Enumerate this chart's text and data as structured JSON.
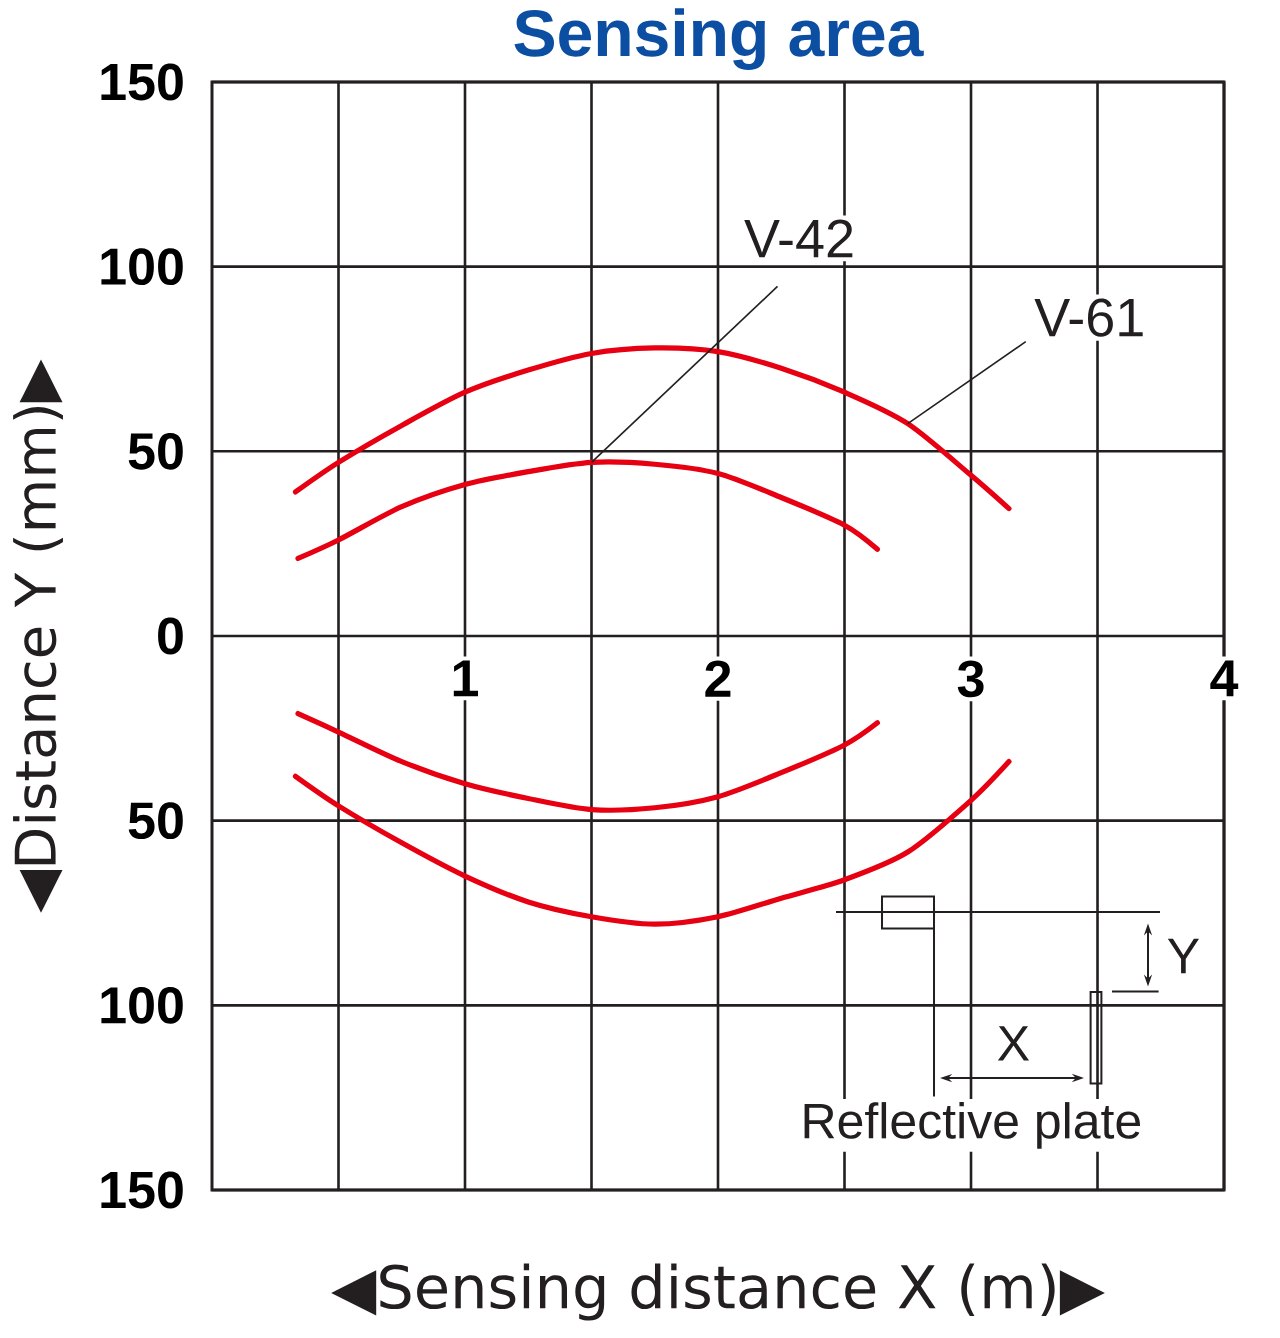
{
  "chart_data": {
    "type": "line",
    "title": "Sensing area",
    "xlabel": "◀Sensing distance X (m)▶",
    "ylabel": "◀Distance Y (mm)▶",
    "xlim": [
      0,
      4
    ],
    "ylim": [
      -150,
      150
    ],
    "xticks": [
      {
        "value": 0.5,
        "label": null
      },
      1,
      {
        "value": 1.5,
        "label": null
      },
      2,
      {
        "value": 2.5,
        "label": null
      },
      3,
      {
        "value": 3.5,
        "label": null
      },
      4
    ],
    "yticks": [
      {
        "value": -150,
        "label": "150"
      },
      {
        "value": -100,
        "label": "100"
      },
      {
        "value": -50,
        "label": "50"
      },
      0,
      50,
      100,
      150
    ],
    "grid": true,
    "line_style": "solid",
    "series": [
      {
        "name": "V-42",
        "color": "#e60012",
        "x": [
          0.34,
          0.5,
          0.75,
          1,
          1.25,
          1.5,
          1.75,
          2,
          2.25,
          2.5,
          2.63
        ],
        "values": [
          21,
          26,
          35,
          41,
          44.5,
          47,
          46.5,
          44,
          37.5,
          30,
          23.5
        ]
      },
      {
        "color": "#e60012",
        "x": [
          0.34,
          0.5,
          0.75,
          1,
          1.25,
          1.5,
          1.75,
          2,
          2.25,
          2.5,
          2.63
        ],
        "values": [
          -21,
          -26,
          -34,
          -40,
          -44,
          -47,
          -46.5,
          -43.5,
          -37,
          -29.5,
          -23.5
        ]
      },
      {
        "name": "V-61",
        "color": "#e60012",
        "x": [
          0.33,
          0.5,
          0.75,
          1,
          1.25,
          1.5,
          1.75,
          2,
          2.25,
          2.5,
          2.75,
          3,
          3.15
        ],
        "values": [
          39,
          47,
          57,
          66,
          72,
          76.5,
          78,
          77,
          72.5,
          66,
          57.5,
          43.5,
          34.5
        ]
      },
      {
        "color": "#e60012",
        "x": [
          0.33,
          0.5,
          0.75,
          1,
          1.25,
          1.5,
          1.75,
          2,
          2.25,
          2.5,
          2.75,
          3,
          3.15
        ],
        "values": [
          -38,
          -46,
          -56,
          -65,
          -72,
          -76,
          -78,
          -76,
          -71,
          -66,
          -58.5,
          -44.5,
          -34
        ]
      }
    ],
    "annotations": [
      "X",
      "Y",
      "Reflective plate"
    ]
  }
}
